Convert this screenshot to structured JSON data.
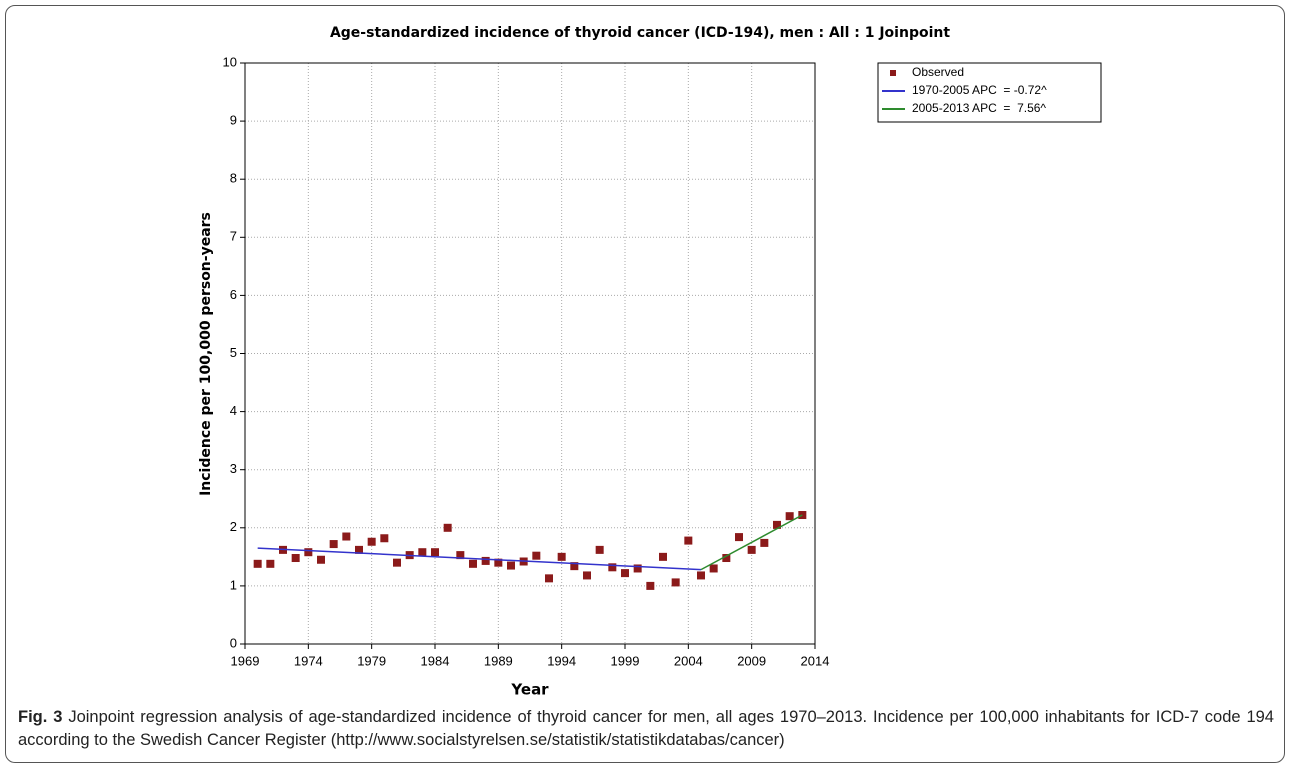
{
  "chart_data": {
    "type": "joinpoint",
    "title": "Age-standardized incidence of thyroid cancer (ICD-194), men : All : 1 Joinpoint",
    "xlabel": "Year",
    "ylabel": "Incidence per 100,000 person-years",
    "xlim": [
      1969,
      2014
    ],
    "xticks": [
      1969,
      1974,
      1979,
      1984,
      1989,
      1994,
      1999,
      2004,
      2009,
      2014
    ],
    "ylim": [
      0,
      10
    ],
    "yticks": [
      0,
      1,
      2,
      3,
      4,
      5,
      6,
      7,
      8,
      9,
      10
    ],
    "grid": true,
    "legend": "upper right",
    "series": [
      {
        "name": "Observed",
        "mode": "markers",
        "color": "#8b1a1a",
        "x": [
          1970,
          1971,
          1972,
          1973,
          1974,
          1975,
          1976,
          1977,
          1978,
          1979,
          1980,
          1981,
          1982,
          1983,
          1984,
          1985,
          1986,
          1987,
          1988,
          1989,
          1990,
          1991,
          1992,
          1993,
          1994,
          1995,
          1996,
          1997,
          1998,
          1999,
          2000,
          2001,
          2002,
          2003,
          2004,
          2005,
          2006,
          2007,
          2008,
          2009,
          2010,
          2011,
          2012,
          2013
        ],
        "values": [
          1.38,
          1.38,
          1.62,
          1.48,
          1.58,
          1.45,
          1.72,
          1.85,
          1.62,
          1.76,
          1.82,
          1.4,
          1.53,
          1.58,
          1.58,
          2.0,
          1.53,
          1.38,
          1.43,
          1.4,
          1.35,
          1.42,
          1.52,
          1.13,
          1.5,
          1.34,
          1.18,
          1.62,
          1.32,
          1.22,
          1.3,
          1.0,
          1.5,
          1.06,
          1.78,
          1.18,
          1.3,
          1.48,
          1.84,
          1.62,
          1.74,
          2.05,
          2.2,
          2.22
        ]
      },
      {
        "name": "1970-2005 APC  = -0.72^",
        "mode": "line",
        "color": "#3333cc",
        "x": [
          1970,
          2005
        ],
        "values": [
          1.65,
          1.28
        ]
      },
      {
        "name": "2005-2013 APC  =  7.56^",
        "mode": "line",
        "color": "#2e8b2e",
        "x": [
          2005,
          2013
        ],
        "values": [
          1.28,
          2.22
        ]
      }
    ]
  },
  "caption": {
    "label": "Fig. 3",
    "text": "Joinpoint regression analysis of age-standardized incidence of thyroid cancer for men, all ages 1970–2013. Incidence per 100,000 inhabitants for ICD-7 code 194 according to the Swedish Cancer Register (http://www.socialstyrelsen.se/statistik/statistikdatabas/cancer)"
  }
}
